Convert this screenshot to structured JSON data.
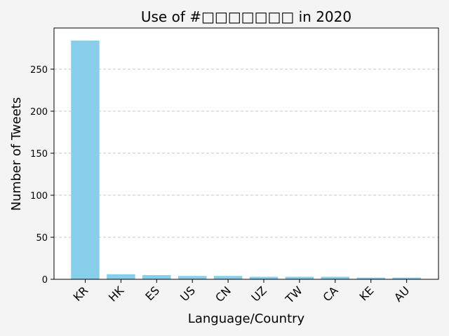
{
  "chart_data": {
    "type": "bar",
    "title": "Use of #□□□□□□□ in 2020",
    "xlabel": "Language/Country",
    "ylabel": "Number of Tweets",
    "categories": [
      "KR",
      "HK",
      "ES",
      "US",
      "CN",
      "UZ",
      "TW",
      "CA",
      "KE",
      "AU"
    ],
    "values": [
      284,
      6,
      5,
      4,
      4,
      3,
      3,
      3,
      2,
      2
    ],
    "ylim": [
      0,
      299
    ],
    "yticks": [
      0,
      50,
      100,
      150,
      200,
      250
    ],
    "grid": "y-dashed",
    "bar_color": "#87ceeb"
  }
}
